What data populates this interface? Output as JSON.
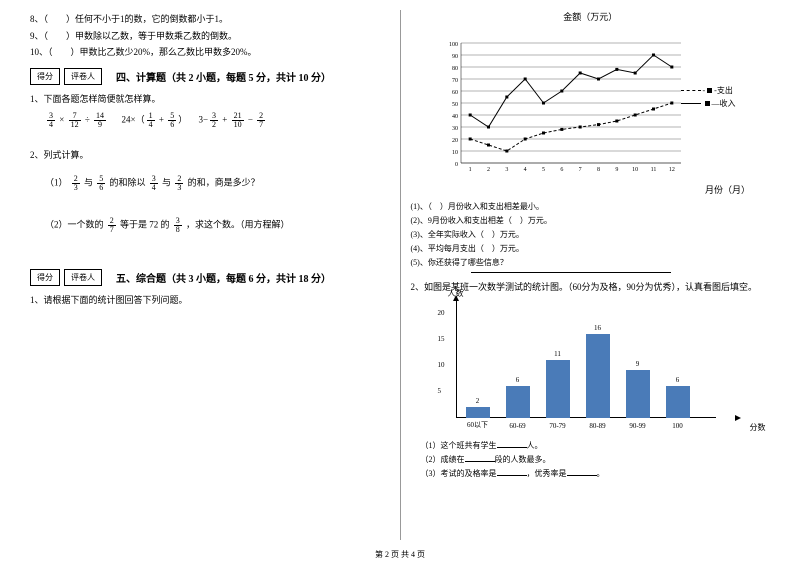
{
  "left": {
    "items8": "8、（　　）任何不小于1的数，它的倒数都小于1。",
    "items9": "9、（　　）甲数除以乙数，等于甲数乘乙数的倒数。",
    "items10": "10、（　　）甲数比乙数少20%，那么乙数比甲数多20%。",
    "scoreLabel": "得分",
    "reviewerLabel": "评卷人",
    "section4Title": "四、计算题（共 2 小题，每题 5 分，共计 10 分）",
    "q1": "1、下面各题怎样简便就怎样算。",
    "q2": "2、列式计算。",
    "q2_1_pre": "（1）",
    "q2_1_mid1": "与",
    "q2_1_mid2": "的和除以",
    "q2_1_mid3": "与",
    "q2_1_post": "的和，商是多少？",
    "q2_2_pre": "（2）一个数的",
    "q2_2_mid": "等于是 72 的",
    "q2_2_post": "，求这个数。（用方程解）",
    "section5Title": "五、综合题（共 3 小题，每题 6 分，共计 18 分）",
    "q5_1": "1、请根据下面的统计图回答下列问题。",
    "fracs": {
      "a": {
        "n": "3",
        "d": "4"
      },
      "b": {
        "n": "7",
        "d": "12"
      },
      "c": {
        "n": "14",
        "d": "9"
      },
      "d": {
        "n": "1",
        "d": "4"
      },
      "e": {
        "n": "5",
        "d": "6"
      },
      "f": {
        "n": "3",
        "d": "2"
      },
      "g": {
        "n": "21",
        "d": "10"
      },
      "h": {
        "n": "2",
        "d": "7"
      },
      "i": {
        "n": "2",
        "d": "3"
      },
      "j": {
        "n": "5",
        "d": "6"
      },
      "k": {
        "n": "3",
        "d": "4"
      },
      "l": {
        "n": "2",
        "d": "3"
      },
      "m": {
        "n": "2",
        "d": "7"
      },
      "n": {
        "n": "3",
        "d": "8"
      }
    }
  },
  "right": {
    "lineChart": {
      "yTitle": "金额（万元）",
      "xTitle": "月份（月）",
      "yMax": 100,
      "yStep": 10,
      "xLabels": [
        "1",
        "2",
        "3",
        "4",
        "5",
        "6",
        "7",
        "8",
        "9",
        "10",
        "11",
        "12"
      ],
      "series": [
        {
          "name": "支出",
          "dash": true,
          "points": [
            20,
            15,
            10,
            20,
            25,
            28,
            30,
            32,
            35,
            40,
            45,
            50
          ]
        },
        {
          "name": "收入",
          "dash": false,
          "points": [
            40,
            30,
            55,
            70,
            50,
            60,
            75,
            70,
            78,
            75,
            90,
            80
          ]
        }
      ],
      "legendIcon1": "支出",
      "legendIcon2": "收入"
    },
    "lineQs": {
      "q1": "(1)、（　）月份收入和支出相差最小。",
      "q2": "(2)、9月份收入和支出相差（　）万元。",
      "q3": "(3)、全年实际收入（　）万元。",
      "q4": "(4)、平均每月支出（　）万元。",
      "q5": "(5)、你还获得了哪些信息？"
    },
    "q2Intro": "2、如图是某班一次数学测试的统计图。（60分为及格，90分为优秀），认真看图后填空。",
    "barChart": {
      "yLabel": "人数",
      "xLabel": "分数",
      "yMax": 20,
      "yTicks": [
        5,
        10,
        15,
        20
      ],
      "bars": [
        {
          "x": "60以下",
          "v": 2,
          "color": "#4a7bb8"
        },
        {
          "x": "60-69",
          "v": 6,
          "color": "#4a7bb8"
        },
        {
          "x": "70-79",
          "v": 11,
          "color": "#4a7bb8"
        },
        {
          "x": "80-89",
          "v": 16,
          "color": "#4a7bb8"
        },
        {
          "x": "90-99",
          "v": 9,
          "color": "#4a7bb8"
        },
        {
          "x": "100",
          "v": 6,
          "color": "#4a7bb8"
        }
      ]
    },
    "barQs": {
      "q1_a": "（1）这个班共有学生",
      "q1_b": "人。",
      "q2_a": "（2）成绩在",
      "q2_b": "段的人数最多。",
      "q3_a": "（3）考试的及格率是",
      "q3_b": "，优秀率是",
      "q3_c": "。"
    }
  },
  "footer": "第 2 页 共 4 页"
}
